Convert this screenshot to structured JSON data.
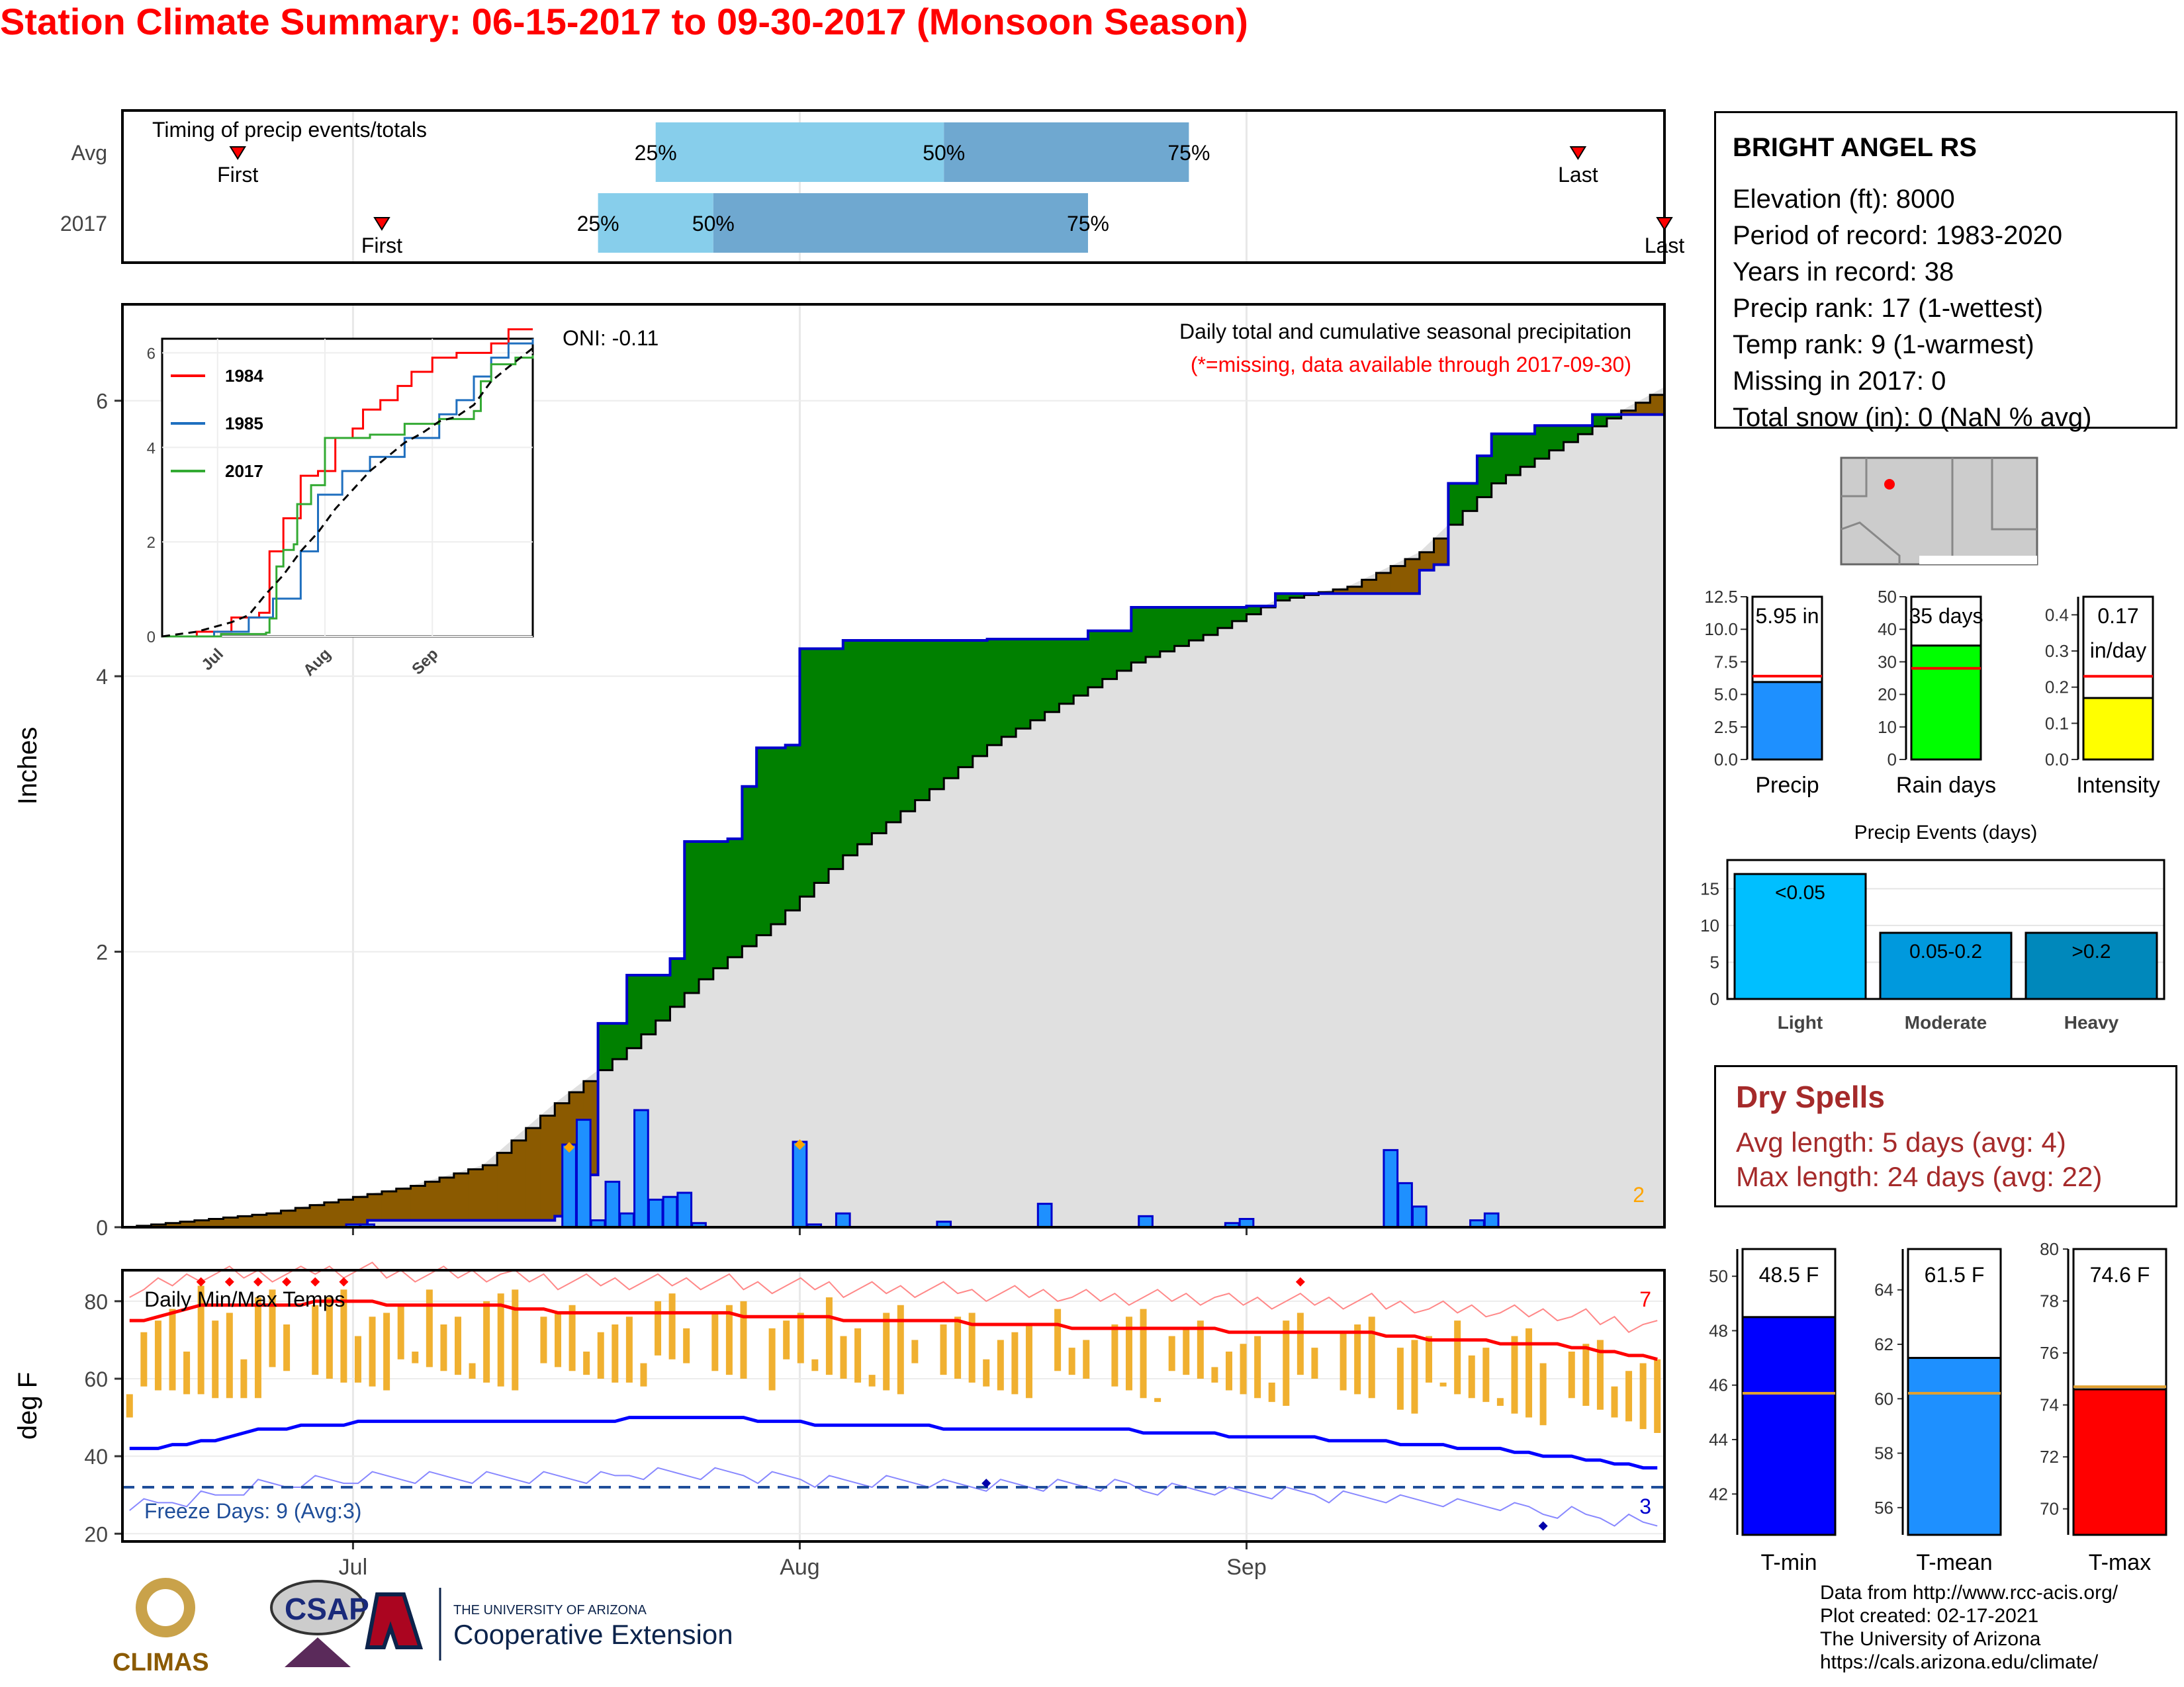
{
  "title": "Station Climate Summary: 06-15-2017 to 09-30-2017 (Monsoon Season)",
  "timing": {
    "panel_label": "Timing of precip events/totals",
    "rows": [
      {
        "label": "Avg",
        "first": "First",
        "last": "Last",
        "p25": "25%",
        "p50": "50%",
        "p75": "75%",
        "first_day": 8,
        "p25_day": 37,
        "p50_day": 57,
        "p75_day": 74,
        "last_day": 101
      },
      {
        "label": "2017",
        "first": "First",
        "last": "Last",
        "p25": "25%",
        "p50": "50%",
        "p75": "75%",
        "first_day": 18,
        "p25_day": 33,
        "p50_day": 41,
        "p75_day": 67,
        "last_day": 107
      }
    ],
    "colors": {
      "q1": "#87ceeb",
      "q2": "#6fa8d0",
      "marker": "#ff0000"
    }
  },
  "precip": {
    "ylabel": "Inches",
    "oni": "ONI: -0.11",
    "caption": "Daily total and cumulative seasonal precipitation",
    "missing_note": "(*=missing, data available through 2017-09-30)",
    "count_label": "2",
    "colors": {
      "above": "#008000",
      "below": "#8b5a00",
      "avg_fill": "#e0e0e0",
      "bars": "#1e90ff",
      "line": "#0000cd"
    }
  },
  "inset": {
    "legend": [
      "1984",
      "1985",
      "2017"
    ],
    "colors": [
      "#ff0000",
      "#1f6fbf",
      "#33aa33"
    ],
    "x_ticks": [
      "Jul",
      "Aug",
      "Sep"
    ],
    "y_ticks": [
      "0",
      "2",
      "4",
      "6"
    ]
  },
  "temps": {
    "ylabel": "deg F",
    "title": "Daily Min/Max Temps",
    "freeze": "Freeze Days: 9 (Avg:3)",
    "hot_count": "7",
    "cold_count": "3",
    "y_ticks": [
      "20",
      "40",
      "60",
      "80"
    ],
    "x_ticks": [
      "Jul",
      "Aug",
      "Sep"
    ]
  },
  "station": {
    "name": "BRIGHT ANGEL RS",
    "lines": [
      "Elevation (ft): 8000",
      "Period of record: 1983-2020",
      "Years in record: 38",
      "Precip rank: 17 (1-wettest)",
      "Temp rank: 9 (1-warmest)",
      "Missing in 2017: 0",
      "Total snow (in): 0 (NaN % avg)"
    ]
  },
  "mini_bars": [
    {
      "label": "Precip",
      "value_text": "5.95 in",
      "value": 5.95,
      "avg": 6.4,
      "ymax": 12.5,
      "ticks": [
        "0.0",
        "2.5",
        "5.0",
        "7.5",
        "10.0",
        "12.5"
      ],
      "tick_vals": [
        0,
        2.5,
        5,
        7.5,
        10,
        12.5
      ],
      "color": "#1e90ff"
    },
    {
      "label": "Rain days",
      "value_text": "35 days",
      "value": 35,
      "avg": 28,
      "ymax": 50,
      "ticks": [
        "0",
        "10",
        "20",
        "30",
        "40",
        "50"
      ],
      "tick_vals": [
        0,
        10,
        20,
        30,
        40,
        50
      ],
      "color": "#00ff00"
    },
    {
      "label": "Intensity",
      "value_text": "0.17",
      "value_text2": "in/day",
      "value": 0.17,
      "avg": 0.23,
      "ymax": 0.45,
      "ticks": [
        "0.0",
        "0.1",
        "0.2",
        "0.3",
        "0.4"
      ],
      "tick_vals": [
        0,
        0.1,
        0.2,
        0.3,
        0.4
      ],
      "color": "#ffff00"
    }
  ],
  "events": {
    "title": "Precip Events (days)",
    "categories": [
      "Light",
      "Moderate",
      "Heavy"
    ],
    "bar_labels": [
      "<0.05",
      "0.05-0.2",
      ">0.2"
    ],
    "values": [
      17,
      9,
      9
    ],
    "ticks": [
      "0",
      "5",
      "10",
      "15"
    ],
    "colors": [
      "#00bfff",
      "#0099dd",
      "#0088bb"
    ]
  },
  "dry_spells": {
    "title": "Dry Spells",
    "avg_length": "Avg length: 5 days (avg: 4)",
    "max_length": "Max length: 24 days (avg: 22)"
  },
  "temp_bars": [
    {
      "label": "T-min",
      "value_text": "48.5 F",
      "value": 48.5,
      "avg": 45.7,
      "ymin": 40.5,
      "ymax": 51,
      "ticks": [
        "42",
        "44",
        "46",
        "48",
        "50"
      ],
      "tick_vals": [
        42,
        44,
        46,
        48,
        50
      ],
      "color": "#0000ff"
    },
    {
      "label": "T-mean",
      "value_text": "61.5 F",
      "value": 61.5,
      "avg": 60.2,
      "ymin": 55,
      "ymax": 65.5,
      "ticks": [
        "56",
        "58",
        "60",
        "62",
        "64"
      ],
      "tick_vals": [
        56,
        58,
        60,
        62,
        64
      ],
      "color": "#1e90ff"
    },
    {
      "label": "T-max",
      "value_text": "74.6 F",
      "value": 74.6,
      "avg": 74.7,
      "ymin": 69,
      "ymax": 80,
      "ticks": [
        "70",
        "72",
        "74",
        "76",
        "78",
        "80"
      ],
      "tick_vals": [
        70,
        72,
        74,
        76,
        78,
        80
      ],
      "color": "#ff0000"
    }
  ],
  "logos": {
    "climas": "CLIMAS",
    "csap": "CSAP",
    "ua_small": "THE UNIVERSITY OF ARIZONA",
    "ua_big": "Cooperative Extension"
  },
  "credits": [
    "Data from http://www.rcc-acis.org/",
    "Plot created: 02-17-2021",
    "The University of Arizona",
    "https://cals.arizona.edu/climate/"
  ],
  "chart_data": [
    {
      "type": "area",
      "title": "Daily total and cumulative seasonal precipitation",
      "ylabel": "Inches",
      "xlabel": "",
      "x_ticks": [
        "Jul",
        "Aug",
        "Sep"
      ],
      "ylim": [
        0,
        6.7
      ],
      "x_days_start": "06-15",
      "observed_cumulative": [
        [
          0,
          0
        ],
        [
          17,
          0.05
        ],
        [
          30,
          0.08
        ],
        [
          31,
          0.38
        ],
        [
          33,
          1.48
        ],
        [
          35,
          1.83
        ],
        [
          38,
          1.95
        ],
        [
          39,
          2.8
        ],
        [
          42,
          2.82
        ],
        [
          43,
          3.2
        ],
        [
          44,
          3.48
        ],
        [
          46,
          3.5
        ],
        [
          47,
          4.2
        ],
        [
          50,
          4.26
        ],
        [
          60,
          4.27
        ],
        [
          65,
          4.27
        ],
        [
          67,
          4.33
        ],
        [
          70,
          4.5
        ],
        [
          78,
          4.51
        ],
        [
          80,
          4.6
        ],
        [
          81,
          4.6
        ],
        [
          89,
          4.6
        ],
        [
          90,
          4.77
        ],
        [
          91,
          4.81
        ],
        [
          92,
          5.4
        ],
        [
          94,
          5.6
        ],
        [
          95,
          5.76
        ],
        [
          98,
          5.82
        ],
        [
          102,
          5.9
        ],
        [
          107,
          5.95
        ]
      ],
      "average_cumulative": [
        [
          0,
          0
        ],
        [
          10,
          0.1
        ],
        [
          15,
          0.2
        ],
        [
          20,
          0.3
        ],
        [
          25,
          0.45
        ],
        [
          30,
          0.9
        ],
        [
          35,
          1.3
        ],
        [
          40,
          1.8
        ],
        [
          45,
          2.2
        ],
        [
          50,
          2.7
        ],
        [
          55,
          3.1
        ],
        [
          60,
          3.5
        ],
        [
          65,
          3.8
        ],
        [
          70,
          4.1
        ],
        [
          75,
          4.3
        ],
        [
          80,
          4.55
        ],
        [
          85,
          4.65
        ],
        [
          90,
          4.9
        ],
        [
          95,
          5.4
        ],
        [
          100,
          5.7
        ],
        [
          107,
          6.1
        ]
      ],
      "daily_precip": [
        [
          16,
          0.02
        ],
        [
          17,
          0.02
        ],
        [
          31,
          0.6
        ],
        [
          32,
          0.78
        ],
        [
          33,
          0.05
        ],
        [
          34,
          0.33
        ],
        [
          35,
          0.1
        ],
        [
          36,
          0.85
        ],
        [
          37,
          0.2
        ],
        [
          38,
          0.22
        ],
        [
          39,
          0.25
        ],
        [
          40,
          0.03
        ],
        [
          47,
          0.62
        ],
        [
          48,
          0.02
        ],
        [
          50,
          0.1
        ],
        [
          57,
          0.04
        ],
        [
          64,
          0.17
        ],
        [
          71,
          0.08
        ],
        [
          77,
          0.03
        ],
        [
          78,
          0.06
        ],
        [
          88,
          0.56
        ],
        [
          89,
          0.32
        ],
        [
          90,
          0.15
        ],
        [
          94,
          0.05
        ],
        [
          95,
          0.1
        ]
      ]
    },
    {
      "type": "line",
      "title": "",
      "series": [
        {
          "name": "1984"
        },
        {
          "name": "1985"
        },
        {
          "name": "2017"
        }
      ],
      "x_ticks": [
        "Jul",
        "Aug",
        "Sep"
      ],
      "ylim": [
        0,
        6.3
      ]
    },
    {
      "type": "bar",
      "title": "Daily Min/Max Temps",
      "ylabel": "deg F",
      "ylim": [
        18,
        88
      ],
      "x_ticks": [
        "Jul",
        "Aug",
        "Sep"
      ],
      "freeze_line": 32,
      "avg_max": [
        75,
        75,
        76,
        77,
        78,
        79,
        79,
        79,
        79,
        79,
        79,
        79,
        79,
        80,
        80,
        80,
        80,
        80,
        79,
        79,
        79,
        79,
        79,
        79,
        79,
        79,
        79,
        78,
        78,
        78,
        77,
        77,
        77,
        77,
        77,
        77,
        77,
        77,
        77,
        77,
        77,
        77,
        77,
        76,
        76,
        76,
        76,
        76,
        76,
        76,
        75,
        75,
        75,
        75,
        75,
        75,
        75,
        75,
        75,
        74,
        74,
        74,
        74,
        74,
        74,
        74,
        73,
        73,
        73,
        73,
        73,
        73,
        73,
        73,
        73,
        73,
        73,
        72,
        72,
        72,
        72,
        72,
        72,
        72,
        72,
        72,
        72,
        72,
        71,
        71,
        71,
        70,
        70,
        70,
        70,
        70,
        69,
        69,
        69,
        69,
        69,
        68,
        68,
        67,
        67,
        66,
        66,
        65
      ],
      "avg_min": [
        42,
        42,
        42,
        43,
        43,
        44,
        44,
        45,
        46,
        47,
        47,
        47,
        48,
        48,
        48,
        48,
        49,
        49,
        49,
        49,
        49,
        49,
        49,
        49,
        49,
        49,
        49,
        49,
        49,
        49,
        49,
        49,
        49,
        49,
        49,
        50,
        50,
        50,
        50,
        50,
        50,
        50,
        50,
        50,
        49,
        49,
        49,
        49,
        48,
        48,
        48,
        48,
        48,
        48,
        48,
        48,
        48,
        47,
        47,
        47,
        47,
        47,
        47,
        47,
        47,
        47,
        47,
        47,
        47,
        47,
        47,
        46,
        46,
        46,
        46,
        46,
        46,
        45,
        45,
        45,
        45,
        45,
        45,
        45,
        44,
        44,
        44,
        44,
        44,
        43,
        43,
        43,
        43,
        42,
        42,
        42,
        42,
        41,
        41,
        40,
        40,
        40,
        39,
        39,
        38,
        38,
        37,
        37
      ]
    },
    {
      "type": "bar",
      "title": "",
      "categories": [
        "Precip",
        "Rain days",
        "Intensity"
      ],
      "values": [
        5.95,
        35,
        0.17
      ]
    },
    {
      "type": "bar",
      "title": "Precip Events (days)",
      "categories": [
        "Light",
        "Moderate",
        "Heavy"
      ],
      "values": [
        17,
        9,
        9
      ],
      "ylim": [
        0,
        18
      ]
    },
    {
      "type": "bar",
      "title": "",
      "categories": [
        "T-min",
        "T-mean",
        "T-max"
      ],
      "values": [
        48.5,
        61.5,
        74.6
      ]
    }
  ]
}
